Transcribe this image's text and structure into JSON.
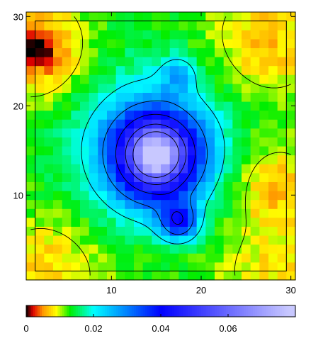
{
  "chart_data": {
    "type": "heatmap",
    "title": "",
    "xlabel": "",
    "ylabel": "",
    "x_range": [
      0.5,
      30.5
    ],
    "y_range": [
      0.5,
      30.5
    ],
    "x_ticks": [
      {
        "value": 10,
        "label": "10"
      },
      {
        "value": 20,
        "label": "20"
      },
      {
        "value": 30,
        "label": "30"
      }
    ],
    "y_ticks": [
      {
        "value": 10,
        "label": "10"
      },
      {
        "value": 20,
        "label": "20"
      },
      {
        "value": 30,
        "label": "30"
      }
    ],
    "grid_size": [
      30,
      30
    ],
    "contour_levels": [
      0.01,
      0.02,
      0.03,
      0.04,
      0.05,
      0.06
    ],
    "features": [
      {
        "kind": "peak",
        "x": 15.0,
        "y": 14.5,
        "value": 0.075
      },
      {
        "kind": "secondary-peak",
        "x": 17.5,
        "y": 7.0,
        "value": 0.045
      },
      {
        "kind": "local-max",
        "x": 17.5,
        "y": 23.5,
        "value": 0.033
      },
      {
        "kind": "corner-low",
        "x": 1.5,
        "y": 26.5,
        "value": 0.0
      }
    ],
    "colorbar": {
      "min": 0,
      "max": 0.08,
      "ticks": [
        {
          "value": 0,
          "label": "0"
        },
        {
          "value": 0.02,
          "label": "0.02"
        },
        {
          "value": 0.04,
          "label": "0.04"
        },
        {
          "value": 0.06,
          "label": "0.06"
        }
      ],
      "colors": [
        "#000000",
        "#e00000",
        "#ff9900",
        "#ffff00",
        "#00ee00",
        "#00ffff",
        "#0000ff",
        "#c8c8ff"
      ]
    },
    "inner_box": {
      "x_range": [
        1.5,
        29.5
      ],
      "y_range": [
        1.5,
        29.5
      ]
    }
  }
}
